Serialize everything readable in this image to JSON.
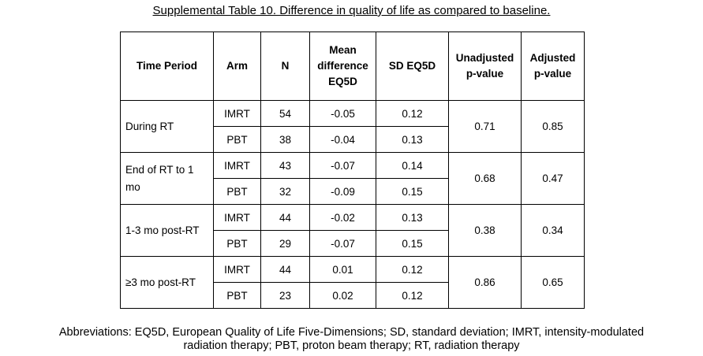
{
  "title": "Supplemental Table 10. Difference in quality of life as compared to baseline.",
  "table": {
    "headers": {
      "time_period": "Time Period",
      "arm": "Arm",
      "n": "N",
      "mean_diff_1": "Mean",
      "mean_diff_2": "difference",
      "mean_diff_3": "EQ5D",
      "sd": "SD EQ5D",
      "unadj_1": "Unadjusted",
      "unadj_2": "p-value",
      "adj_1": "Adjusted",
      "adj_2": "p-value"
    },
    "groups": [
      {
        "period_1": "During RT",
        "period_2": "",
        "unadjusted": "0.71",
        "adjusted": "0.85",
        "rows": [
          {
            "arm": "IMRT",
            "n": "54",
            "mean": "-0.05",
            "sd": "0.12"
          },
          {
            "arm": "PBT",
            "n": "38",
            "mean": "-0.04",
            "sd": "0.13"
          }
        ]
      },
      {
        "period_1": "End of RT to 1",
        "period_2": "mo",
        "unadjusted": "0.68",
        "adjusted": "0.47",
        "rows": [
          {
            "arm": "IMRT",
            "n": "43",
            "mean": "-0.07",
            "sd": "0.14"
          },
          {
            "arm": "PBT",
            "n": "32",
            "mean": "-0.09",
            "sd": "0.15"
          }
        ]
      },
      {
        "period_1": "1-3 mo post-RT",
        "period_2": "",
        "unadjusted": "0.38",
        "adjusted": "0.34",
        "rows": [
          {
            "arm": "IMRT",
            "n": "44",
            "mean": "-0.02",
            "sd": "0.13"
          },
          {
            "arm": "PBT",
            "n": "29",
            "mean": "-0.07",
            "sd": "0.15"
          }
        ]
      },
      {
        "period_1": "≥3 mo post-RT",
        "period_2": "",
        "unadjusted": "0.86",
        "adjusted": "0.65",
        "rows": [
          {
            "arm": "IMRT",
            "n": "44",
            "mean": "0.01",
            "sd": "0.12"
          },
          {
            "arm": "PBT",
            "n": "23",
            "mean": "0.02",
            "sd": "0.12"
          }
        ]
      }
    ]
  },
  "abbreviations": {
    "line_1": "Abbreviations: EQ5D, European Quality of Life Five-Dimensions; SD, standard deviation; IMRT, intensity-modulated",
    "line_2": "radiation therapy; PBT, proton beam therapy; RT, radiation therapy"
  }
}
